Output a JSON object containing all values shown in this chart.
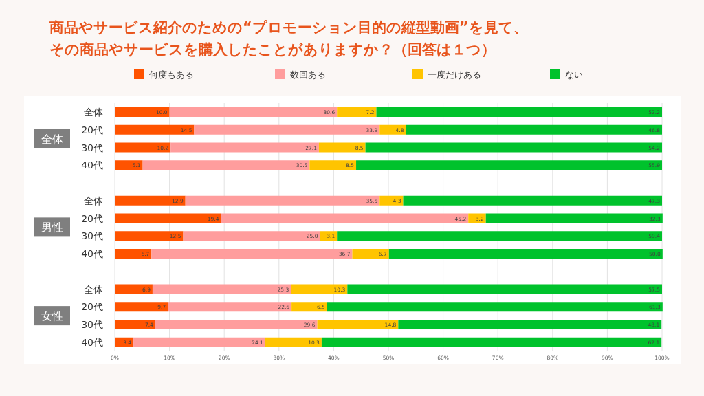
{
  "chart_data": {
    "type": "bar",
    "orientation": "horizontal",
    "stacked": true,
    "title": "商品やサービス紹介のための“プロモーション目的の縦型動画”を見て、",
    "subtitle": "その商品やサービスを購入したことがありますか？（回答は１つ）",
    "categories": [
      "全体",
      "20代",
      "30代",
      "40代",
      "全体",
      "20代",
      "30代",
      "40代",
      "全体",
      "20代",
      "30代",
      "40代"
    ],
    "series": [
      {
        "name": "何度もある",
        "color": "#ff5300",
        "values": [
          10.0,
          14.5,
          10.2,
          5.1,
          12.9,
          19.4,
          12.5,
          6.7,
          6.9,
          9.7,
          7.4,
          3.4
        ],
        "value_labels": [
          "10.0",
          "14.5",
          "10.2",
          "5.1",
          "12.9",
          "19.4",
          "12.5",
          "6.7",
          "6.9",
          "9.7",
          "7.4",
          "3.4"
        ]
      },
      {
        "name": "数回ある",
        "color": "#ff9d9d",
        "values": [
          30.6,
          33.9,
          27.1,
          30.5,
          35.5,
          45.2,
          25.0,
          36.7,
          25.3,
          22.6,
          29.6,
          24.1
        ],
        "value_labels": [
          "30.6",
          "33.9",
          "27.1",
          "30.5",
          "35.5",
          "45.2",
          "25.0",
          "36.7",
          "25.3",
          "22.6",
          "29.6",
          "24.1"
        ]
      },
      {
        "name": "一度だけある",
        "color": "#ffc400",
        "values": [
          7.2,
          4.8,
          8.5,
          8.5,
          4.3,
          3.2,
          3.1,
          6.7,
          10.3,
          6.5,
          14.8,
          10.3
        ],
        "value_labels": [
          "7.2",
          "4.8",
          "8.5",
          "8.5",
          "4.3",
          "3.2",
          "3.1",
          "6.7",
          "10.3",
          "6.5",
          "14.8",
          "10.3"
        ]
      },
      {
        "name": "ない",
        "color": "#00c22c",
        "values": [
          52.2,
          46.8,
          54.2,
          55.9,
          47.3,
          32.3,
          59.4,
          50.0,
          57.5,
          61.3,
          48.1,
          62.1
        ],
        "value_labels": [
          "52.2",
          "46.8",
          "54.2",
          "55.9",
          "47.3",
          "32.3",
          "59.4",
          "50.0",
          "57.5",
          "61.3",
          "48.1",
          "62.1"
        ]
      }
    ],
    "xlim": [
      0,
      100
    ],
    "xticks": [
      {
        "value": 0,
        "label": "0%"
      },
      {
        "value": 10,
        "label": "10%"
      },
      {
        "value": 20,
        "label": "20%"
      },
      {
        "value": 30,
        "label": "30%"
      },
      {
        "value": 40,
        "label": "40%"
      },
      {
        "value": 50,
        "label": "50%"
      },
      {
        "value": 60,
        "label": "60%"
      },
      {
        "value": 70,
        "label": "70%"
      },
      {
        "value": 80,
        "label": "80%"
      },
      {
        "value": 90,
        "label": "90%"
      },
      {
        "value": 100,
        "label": "100%"
      }
    ],
    "grid": "x",
    "legend": "top",
    "annotations": [
      "全体",
      "男性",
      "女性"
    ]
  }
}
